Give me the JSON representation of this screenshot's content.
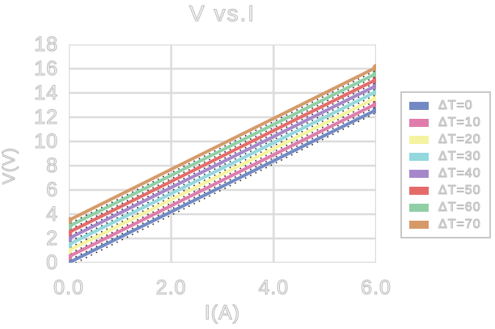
{
  "chart_data": {
    "type": "line",
    "title": "V vs.I",
    "xlabel": "I(A)",
    "ylabel": "V(V)",
    "xlim": [
      0,
      6
    ],
    "ylim": [
      0,
      18
    ],
    "xtick_values": [
      0,
      2,
      4,
      6
    ],
    "xtick_labels": [
      "0.0",
      "2.0",
      "4.0",
      "6.0"
    ],
    "ytick_values": [
      0,
      2,
      4,
      6,
      8,
      10,
      12,
      14,
      16,
      18
    ],
    "ytick_labels": [
      "0",
      "2",
      "4",
      "6",
      "8",
      "10",
      "12",
      "14",
      "16",
      "18"
    ],
    "grid": true,
    "legend_position": "outside-right",
    "x": [
      0,
      6
    ],
    "series": [
      {
        "name": "ΔT=0",
        "color": "#7289c4",
        "values": [
          0.0,
          12.6
        ]
      },
      {
        "name": "ΔT=10",
        "color": "#e07cac",
        "values": [
          0.5,
          13.1
        ]
      },
      {
        "name": "ΔT=20",
        "color": "#f6f3a0",
        "values": [
          1.0,
          13.6
        ]
      },
      {
        "name": "ΔT=30",
        "color": "#93d8dd",
        "values": [
          1.5,
          14.1
        ]
      },
      {
        "name": "ΔT=40",
        "color": "#a687ca",
        "values": [
          2.0,
          14.6
        ]
      },
      {
        "name": "ΔT=50",
        "color": "#e56b6b",
        "values": [
          2.5,
          15.1
        ]
      },
      {
        "name": "ΔT=60",
        "color": "#90cfa6",
        "values": [
          3.0,
          15.6
        ]
      },
      {
        "name": "ΔT=70",
        "color": "#d69a69",
        "values": [
          3.5,
          16.1
        ]
      }
    ],
    "style": {
      "grid_color": "#dcdcdc",
      "text_outline_color": "#bdbdbd",
      "line_width": 4,
      "endpoint_marker": "circle",
      "dotted_shadow_color": "#2a2a2a"
    }
  }
}
